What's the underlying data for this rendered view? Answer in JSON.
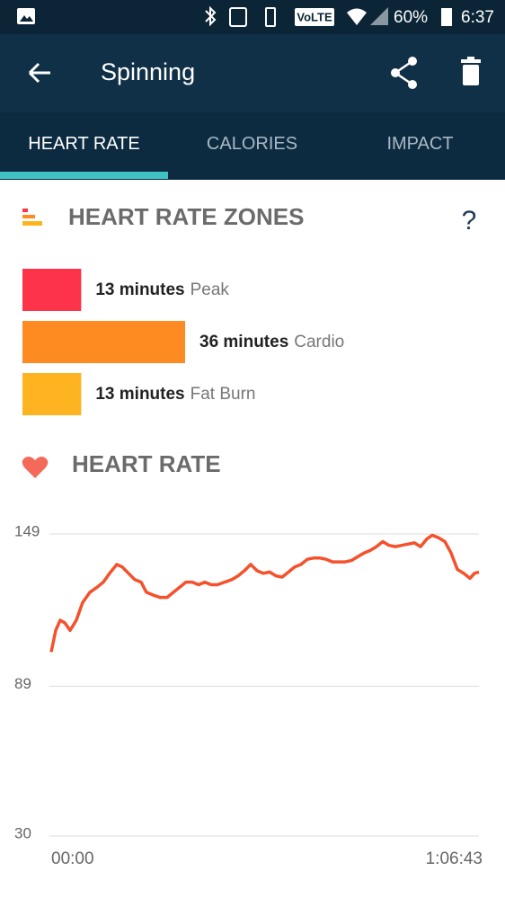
{
  "status_bar": {
    "network": "VoLTE",
    "battery": "60%",
    "time": "6:37"
  },
  "app_bar": {
    "title": "Spinning"
  },
  "tabs": [
    {
      "label": "HEART RATE",
      "selected": true
    },
    {
      "label": "CALORIES",
      "selected": false
    },
    {
      "label": "IMPACT",
      "selected": false
    }
  ],
  "help": "?",
  "chart_data": [
    {
      "type": "bar",
      "title": "HEART RATE ZONES",
      "categories": [
        "Peak",
        "Cardio",
        "Fat Burn"
      ],
      "values": [
        13,
        36,
        13
      ],
      "value_labels": [
        "13 minutes",
        "36 minutes",
        "13 minutes"
      ],
      "colors": [
        "#fd3449",
        "#fe8a22",
        "#feb420"
      ]
    },
    {
      "type": "line",
      "title": "HEART RATE",
      "color": "#f4512c",
      "grid": true,
      "x": [
        0,
        42,
        84,
        126,
        177,
        235,
        294,
        362,
        429,
        488,
        547,
        614,
        664,
        723,
        782,
        841,
        891,
        950,
        1018,
        1085,
        1144,
        1203,
        1261,
        1320,
        1379,
        1438,
        1497,
        1556,
        1623,
        1690,
        1749,
        1808,
        1867,
        1926,
        1985,
        2044,
        2103,
        2161,
        2220,
        2279,
        2338,
        2397,
        2456,
        2515,
        2573,
        2632,
        2691,
        2750,
        2809,
        2868,
        2927,
        2985,
        3044,
        3103,
        3162,
        3221,
        3280,
        3339,
        3398,
        3456,
        3515,
        3566,
        3625,
        3684,
        3742,
        3801,
        3860,
        3919,
        3961,
        4003
      ],
      "values": [
        102.5,
        111,
        115,
        114,
        111,
        115,
        122,
        126,
        128,
        130,
        133.5,
        137,
        136,
        133.5,
        131,
        130,
        126,
        125,
        124,
        124,
        126,
        128,
        130,
        130,
        129,
        130,
        129,
        129,
        130,
        131,
        132.5,
        134.5,
        137,
        134.5,
        133.5,
        134,
        132.5,
        132,
        134,
        136,
        137,
        139,
        139.5,
        139.5,
        139,
        138,
        138,
        138,
        138.5,
        140,
        141.5,
        142.5,
        144,
        146,
        144.5,
        144,
        144.5,
        145,
        145.5,
        144,
        147,
        148.5,
        147.5,
        146,
        141.5,
        135,
        133.5,
        131.5,
        133.5,
        134
      ],
      "xlim": [
        0,
        4003
      ],
      "xticks": [
        {
          "value": 0,
          "label": "00:00"
        },
        {
          "value": 4003,
          "label": "1:06:43"
        }
      ],
      "ylim": [
        30,
        149
      ],
      "yticks": [
        30,
        89,
        149
      ]
    }
  ]
}
